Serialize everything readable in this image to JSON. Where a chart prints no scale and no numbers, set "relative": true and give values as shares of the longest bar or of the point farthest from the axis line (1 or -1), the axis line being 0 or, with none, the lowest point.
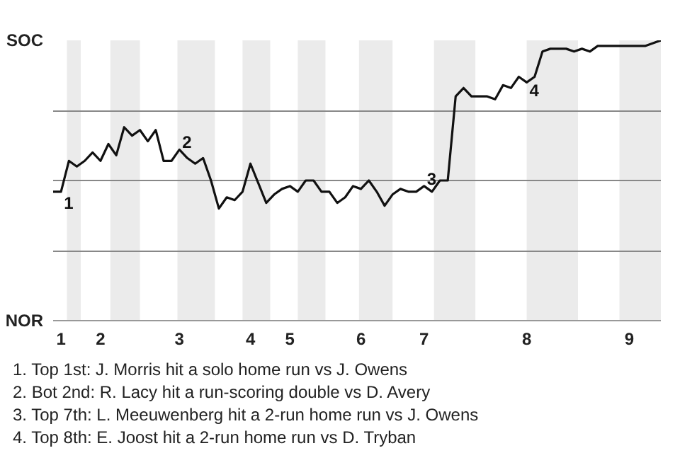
{
  "chart_data": {
    "type": "line",
    "relative": true,
    "categories": [
      null,
      "1",
      null,
      null,
      null,
      null,
      "2",
      null,
      null,
      null,
      null,
      null,
      null,
      null,
      null,
      null,
      "3",
      null,
      null,
      null,
      null,
      null,
      null,
      null,
      null,
      "4",
      null,
      null,
      null,
      null,
      "5",
      null,
      null,
      null,
      null,
      null,
      null,
      null,
      null,
      "6",
      null,
      null,
      null,
      null,
      null,
      null,
      null,
      "7",
      null,
      null,
      null,
      null,
      null,
      null,
      null,
      null,
      null,
      null,
      null,
      null,
      "8",
      null,
      null,
      null,
      null,
      null,
      null,
      null,
      null,
      null,
      null,
      null,
      null,
      "9",
      null,
      null,
      null,
      null
    ],
    "series": [
      {
        "color": "#111111",
        "values": [
          0.46,
          0.46,
          0.57,
          0.55,
          0.57,
          0.6,
          0.57,
          0.63,
          0.59,
          0.69,
          0.66,
          0.68,
          0.64,
          0.68,
          0.57,
          0.57,
          0.61,
          0.58,
          0.56,
          0.58,
          0.5,
          0.4,
          0.44,
          0.43,
          0.46,
          0.56,
          0.49,
          0.42,
          0.45,
          0.47,
          0.48,
          0.46,
          0.5,
          0.5,
          0.46,
          0.46,
          0.42,
          0.44,
          0.48,
          0.47,
          0.5,
          0.46,
          0.41,
          0.45,
          0.47,
          0.46,
          0.46,
          0.48,
          0.46,
          0.5,
          0.5,
          0.8,
          0.83,
          0.8,
          0.8,
          0.8,
          0.79,
          0.84,
          0.83,
          0.87,
          0.85,
          0.87,
          0.96,
          0.97,
          0.97,
          0.97,
          0.96,
          0.97,
          0.96,
          0.98,
          0.98,
          0.98,
          0.98,
          0.98,
          0.98,
          0.98,
          0.99,
          1.0
        ]
      }
    ],
    "grid": "y",
    "marker": "none",
    "line_style": "solid",
    "annotations": [
      "SOC",
      "NOR",
      {
        "text": "1",
        "x": "1",
        "y": 0.45
      },
      {
        "text": "2",
        "x": "3",
        "y": 0.61
      },
      {
        "text": "3",
        "x": "7",
        "y": 0.48
      },
      {
        "text": "4",
        "x": "8",
        "y": 0.85
      },
      "1. Top 1st: J. Morris hit a solo home run vs J. Owens",
      "2. Bot 2nd: R. Lacy hit a run-scoring double vs D. Avery",
      "3. Top 7th: L. Meeuwenberg hit a 2-run home run vs J. Owens",
      "4. Top 8th: E. Joost hit a 2-run home run vs D. Tryban"
    ]
  }
}
